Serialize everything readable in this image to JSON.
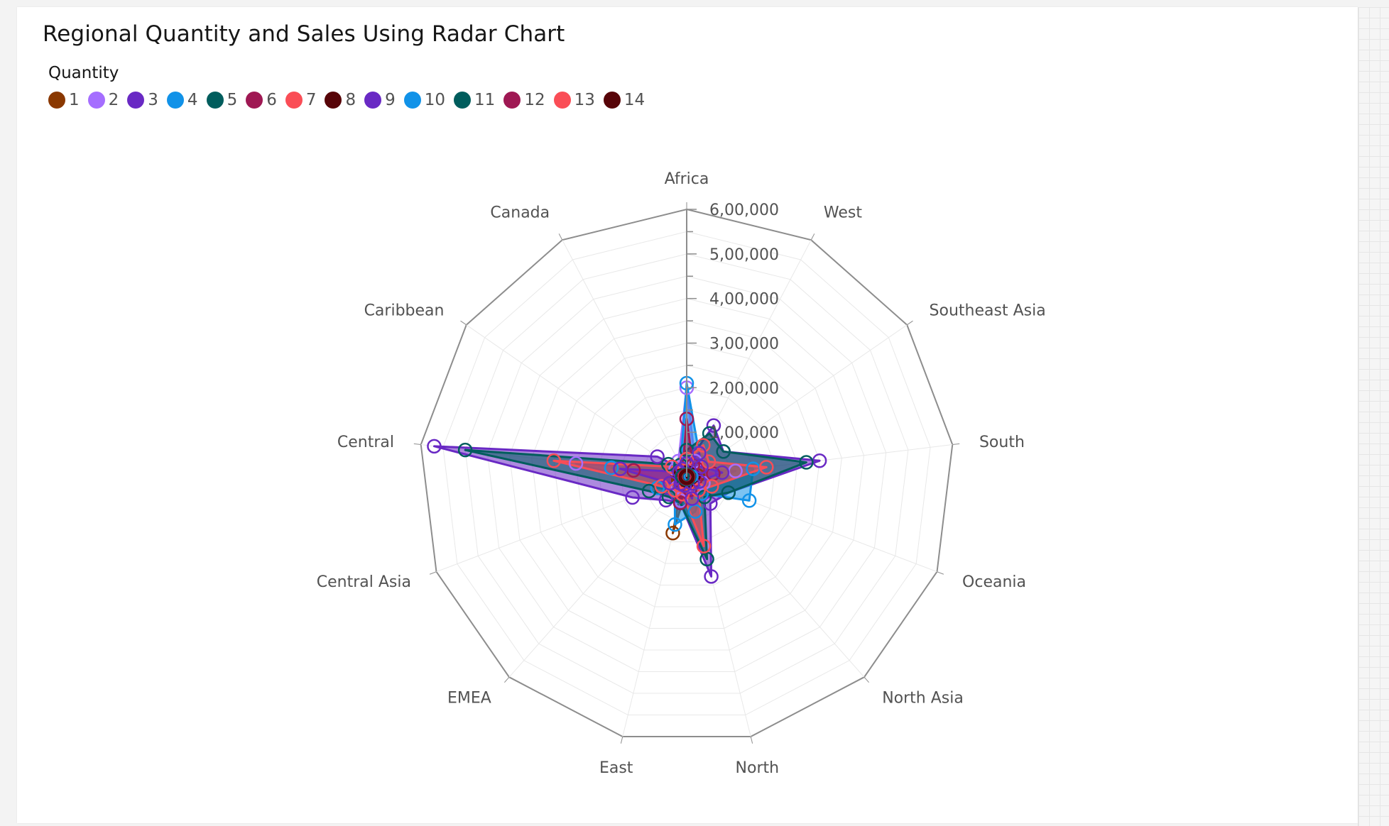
{
  "title": "Regional Quantity and Sales Using Radar Chart",
  "legend": {
    "title": "Quantity",
    "items": [
      {
        "label": "1",
        "color": "#8a3800"
      },
      {
        "label": "2",
        "color": "#a56eff"
      },
      {
        "label": "3",
        "color": "#6929c4"
      },
      {
        "label": "4",
        "color": "#1192e8"
      },
      {
        "label": "5",
        "color": "#005d5d"
      },
      {
        "label": "6",
        "color": "#9f1853"
      },
      {
        "label": "7",
        "color": "#fa4d56"
      },
      {
        "label": "8",
        "color": "#570408"
      },
      {
        "label": "9",
        "color": "#6929c4"
      },
      {
        "label": "10",
        "color": "#1192e8"
      },
      {
        "label": "11",
        "color": "#005d5d"
      },
      {
        "label": "12",
        "color": "#9f1853"
      },
      {
        "label": "13",
        "color": "#fa4d56"
      },
      {
        "label": "14",
        "color": "#570408"
      }
    ]
  },
  "chart_data": {
    "type": "radar",
    "title": "Regional Quantity and Sales Using Radar Chart",
    "legend_title": "Quantity",
    "categories": [
      "Africa",
      "West",
      "Southeast Asia",
      "South",
      "Oceania",
      "North Asia",
      "North",
      "East",
      "EMEA",
      "Central Asia",
      "Central",
      "Caribbean",
      "Canada"
    ],
    "rlim": [
      0,
      600000
    ],
    "ticks": [
      100000,
      200000,
      300000,
      400000,
      500000,
      600000
    ],
    "tick_labels": [
      "1,00,000",
      "2,00,000",
      "3,00,000",
      "4,00,000",
      "5,00,000",
      "6,00,000"
    ],
    "grid": true,
    "legend_position": "top-left",
    "series": [
      {
        "name": "1",
        "color": "#8a3800",
        "values": [
          20000,
          15000,
          10000,
          25000,
          20000,
          10000,
          15000,
          130000,
          15000,
          20000,
          20000,
          10000,
          20000
        ]
      },
      {
        "name": "2",
        "color": "#a56eff",
        "values": [
          200000,
          40000,
          30000,
          110000,
          40000,
          30000,
          50000,
          55000,
          30000,
          60000,
          250000,
          30000,
          40000
        ]
      },
      {
        "name": "3",
        "color": "#6929c4",
        "values": [
          30000,
          130000,
          100000,
          300000,
          100000,
          80000,
          230000,
          60000,
          70000,
          130000,
          570000,
          80000,
          20000
        ]
      },
      {
        "name": "4",
        "color": "#1192e8",
        "values": [
          210000,
          60000,
          60000,
          150000,
          150000,
          50000,
          80000,
          110000,
          40000,
          70000,
          170000,
          40000,
          30000
        ]
      },
      {
        "name": "5",
        "color": "#005d5d",
        "values": [
          60000,
          110000,
          100000,
          270000,
          100000,
          60000,
          190000,
          60000,
          60000,
          90000,
          500000,
          50000,
          30000
        ]
      },
      {
        "name": "6",
        "color": "#9f1853",
        "values": [
          130000,
          30000,
          30000,
          60000,
          20000,
          20000,
          30000,
          60000,
          20000,
          40000,
          120000,
          20000,
          20000
        ]
      },
      {
        "name": "7",
        "color": "#fa4d56",
        "values": [
          40000,
          80000,
          60000,
          180000,
          60000,
          40000,
          160000,
          40000,
          40000,
          60000,
          300000,
          40000,
          20000
        ]
      },
      {
        "name": "8",
        "color": "#570408",
        "values": [
          10000,
          10000,
          5000,
          15000,
          5000,
          5000,
          10000,
          8000,
          5000,
          8000,
          15000,
          5000,
          5000
        ]
      },
      {
        "name": "9",
        "color": "#6929c4",
        "values": [
          30000,
          60000,
          40000,
          80000,
          30000,
          20000,
          50000,
          20000,
          20000,
          40000,
          150000,
          20000,
          20000
        ]
      },
      {
        "name": "10",
        "color": "#1192e8",
        "values": [
          5000,
          5000,
          5000,
          10000,
          5000,
          5000,
          5000,
          5000,
          5000,
          5000,
          10000,
          5000,
          5000
        ]
      },
      {
        "name": "11",
        "color": "#005d5d",
        "values": [
          5000,
          5000,
          5000,
          5000,
          5000,
          5000,
          5000,
          5000,
          5000,
          5000,
          10000,
          5000,
          5000
        ]
      },
      {
        "name": "12",
        "color": "#9f1853",
        "values": [
          3000,
          3000,
          3000,
          3000,
          3000,
          3000,
          3000,
          3000,
          3000,
          3000,
          5000,
          3000,
          3000
        ]
      },
      {
        "name": "13",
        "color": "#fa4d56",
        "values": [
          2000,
          2000,
          2000,
          3000,
          2000,
          2000,
          2000,
          2000,
          2000,
          2000,
          3000,
          2000,
          2000
        ]
      },
      {
        "name": "14",
        "color": "#570408",
        "values": [
          2000,
          2000,
          2000,
          2000,
          2000,
          2000,
          2000,
          2000,
          2000,
          2000,
          2000,
          2000,
          2000
        ]
      }
    ]
  }
}
